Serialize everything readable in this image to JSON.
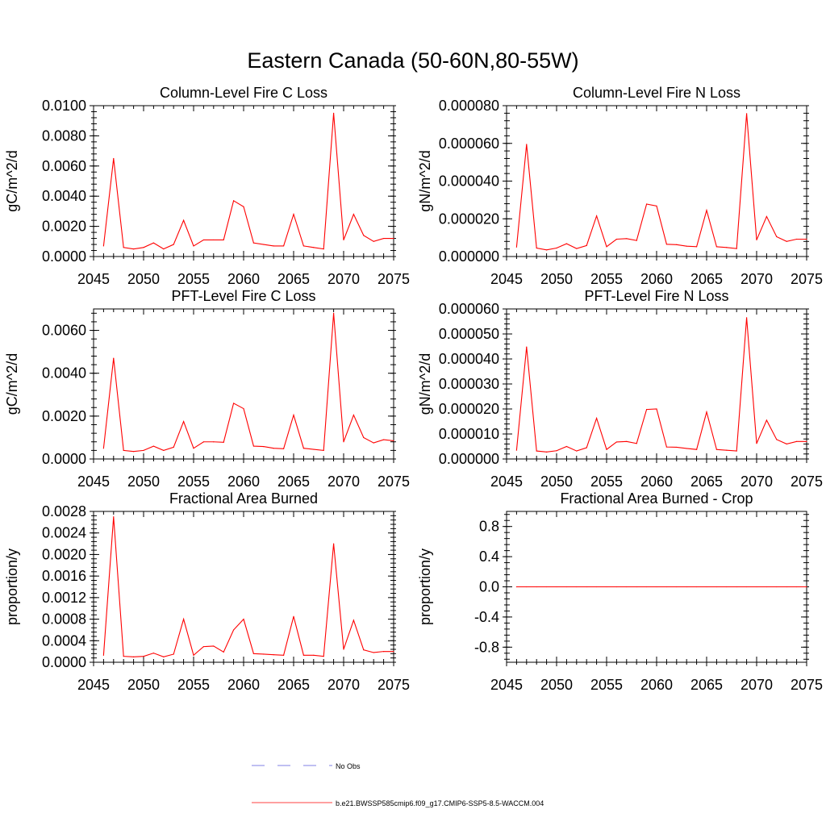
{
  "title": "Eastern Canada (50-60N,80-55W)",
  "legend": {
    "placement": "bottom-center",
    "entries": [
      {
        "label": "No Obs",
        "color": "#5a5adc",
        "dash": true
      },
      {
        "label": "b.e21.BWSSP585cmip6.f09_g17.CMIP6-SSP5-8.5-WACCM.004",
        "color": "#ff0000",
        "dash": false
      }
    ]
  },
  "colors": {
    "series": "#ff0000",
    "axis": "#000000"
  },
  "chart_data": [
    {
      "type": "line",
      "title": "Column-Level Fire C Loss",
      "ylabel": "gC/m^2/d",
      "xlim": [
        2045,
        2075
      ],
      "ylim": [
        0,
        0.01
      ],
      "xticks": [
        2045,
        2050,
        2055,
        2060,
        2065,
        2070,
        2075
      ],
      "xtick_labels": [
        "2045",
        "2050",
        "2055",
        "2060",
        "2065",
        "2070",
        "2075"
      ],
      "yticks": [
        0,
        0.002,
        0.004,
        0.006,
        0.008,
        0.01
      ],
      "ytick_labels": [
        "0.0000",
        "0.0020",
        "0.0040",
        "0.0060",
        "0.0080",
        "0.0100"
      ],
      "grid": false,
      "x": [
        2046,
        2047,
        2048,
        2049,
        2050,
        2051,
        2052,
        2053,
        2054,
        2055,
        2056,
        2057,
        2058,
        2059,
        2060,
        2061,
        2062,
        2063,
        2064,
        2065,
        2066,
        2067,
        2068,
        2069,
        2070,
        2071,
        2072,
        2073,
        2074,
        2075
      ],
      "series": [
        {
          "values": [
            0.0007,
            0.0065,
            0.0006,
            0.0005,
            0.0006,
            0.0009,
            0.0005,
            0.0008,
            0.0024,
            0.0007,
            0.0011,
            0.0011,
            0.0011,
            0.0037,
            0.0033,
            0.0009,
            0.0008,
            0.0007,
            0.0007,
            0.0028,
            0.0007,
            0.0006,
            0.0005,
            0.0095,
            0.0011,
            0.0028,
            0.0014,
            0.001,
            0.0012,
            0.0012
          ]
        }
      ]
    },
    {
      "type": "line",
      "title": "Column-Level Fire N Loss",
      "ylabel": "gN/m^2/d",
      "xlim": [
        2045,
        2075
      ],
      "ylim": [
        0,
        8e-05
      ],
      "xticks": [
        2045,
        2050,
        2055,
        2060,
        2065,
        2070,
        2075
      ],
      "xtick_labels": [
        "2045",
        "2050",
        "2055",
        "2060",
        "2065",
        "2070",
        "2075"
      ],
      "yticks": [
        0,
        2e-05,
        4e-05,
        6e-05,
        8e-05
      ],
      "ytick_labels": [
        "0.000000",
        "0.000020",
        "0.000040",
        "0.000060",
        "0.000080"
      ],
      "grid": false,
      "x": [
        2046,
        2047,
        2048,
        2049,
        2050,
        2051,
        2052,
        2053,
        2054,
        2055,
        2056,
        2057,
        2058,
        2059,
        2060,
        2061,
        2062,
        2063,
        2064,
        2065,
        2066,
        2067,
        2068,
        2069,
        2070,
        2071,
        2072,
        2073,
        2074,
        2075
      ],
      "series": [
        {
          "values": [
            5e-06,
            5.95e-05,
            4.5e-06,
            3.5e-06,
            4.5e-06,
            6.8e-06,
            4.2e-06,
            5.8e-06,
            2.15e-05,
            5.2e-06,
            9.2e-06,
            9.5e-06,
            8.5e-06,
            2.78e-05,
            2.68e-05,
            6.5e-06,
            6.3e-06,
            5.5e-06,
            5.2e-06,
            2.45e-05,
            5.2e-06,
            4.8e-06,
            4.2e-06,
            7.58e-05,
            8.8e-06,
            2.12e-05,
            1.05e-05,
            8e-06,
            9.2e-06,
            9.2e-06
          ]
        }
      ]
    },
    {
      "type": "line",
      "title": "PFT-Level Fire C Loss",
      "ylabel": "gC/m^2/d",
      "xlim": [
        2045,
        2075
      ],
      "ylim": [
        0,
        0.007
      ],
      "xticks": [
        2045,
        2050,
        2055,
        2060,
        2065,
        2070,
        2075
      ],
      "xtick_labels": [
        "2045",
        "2050",
        "2055",
        "2060",
        "2065",
        "2070",
        "2075"
      ],
      "yticks": [
        0,
        0.002,
        0.004,
        0.006
      ],
      "ytick_labels": [
        "0.0000",
        "0.0020",
        "0.0040",
        "0.0060"
      ],
      "grid": false,
      "x": [
        2046,
        2047,
        2048,
        2049,
        2050,
        2051,
        2052,
        2053,
        2054,
        2055,
        2056,
        2057,
        2058,
        2059,
        2060,
        2061,
        2062,
        2063,
        2064,
        2065,
        2066,
        2067,
        2068,
        2069,
        2070,
        2071,
        2072,
        2073,
        2074,
        2075
      ],
      "series": [
        {
          "values": [
            0.0005,
            0.0047,
            0.0004,
            0.00035,
            0.0004,
            0.0006,
            0.0004,
            0.00055,
            0.00175,
            0.0005,
            0.0008,
            0.0008,
            0.00078,
            0.0026,
            0.00235,
            0.0006,
            0.00058,
            0.0005,
            0.00048,
            0.00205,
            0.0005,
            0.00045,
            0.0004,
            0.0068,
            0.0008,
            0.00205,
            0.001,
            0.00075,
            0.0009,
            0.00085
          ]
        }
      ]
    },
    {
      "type": "line",
      "title": "PFT-Level Fire N Loss",
      "ylabel": "gN/m^2/d",
      "xlim": [
        2045,
        2075
      ],
      "ylim": [
        0,
        6e-05
      ],
      "xticks": [
        2045,
        2050,
        2055,
        2060,
        2065,
        2070,
        2075
      ],
      "xtick_labels": [
        "2045",
        "2050",
        "2055",
        "2060",
        "2065",
        "2070",
        "2075"
      ],
      "yticks": [
        0,
        1e-05,
        2e-05,
        3e-05,
        4e-05,
        5e-05,
        6e-05
      ],
      "ytick_labels": [
        "0.000000",
        "0.000010",
        "0.000020",
        "0.000030",
        "0.000040",
        "0.000050",
        "0.000060"
      ],
      "grid": false,
      "x": [
        2046,
        2047,
        2048,
        2049,
        2050,
        2051,
        2052,
        2053,
        2054,
        2055,
        2056,
        2057,
        2058,
        2059,
        2060,
        2061,
        2062,
        2063,
        2064,
        2065,
        2066,
        2067,
        2068,
        2069,
        2070,
        2071,
        2072,
        2073,
        2074,
        2075
      ],
      "series": [
        {
          "values": [
            3.5e-06,
            4.48e-05,
            3.2e-06,
            2.8e-06,
            3.3e-06,
            5e-06,
            3.2e-06,
            4.5e-06,
            1.63e-05,
            3.8e-06,
            6.8e-06,
            7e-06,
            6.2e-06,
            1.98e-05,
            2e-05,
            4.8e-06,
            4.7e-06,
            4.2e-06,
            3.8e-06,
            1.88e-05,
            3.8e-06,
            3.5e-06,
            3.2e-06,
            5.65e-05,
            6.2e-06,
            1.55e-05,
            7.8e-06,
            6e-06,
            7e-06,
            7e-06
          ]
        }
      ]
    },
    {
      "type": "line",
      "title": "Fractional Area Burned",
      "ylabel": "proportion/y",
      "xlim": [
        2045,
        2075
      ],
      "ylim": [
        0,
        0.0028
      ],
      "xticks": [
        2045,
        2050,
        2055,
        2060,
        2065,
        2070,
        2075
      ],
      "xtick_labels": [
        "2045",
        "2050",
        "2055",
        "2060",
        "2065",
        "2070",
        "2075"
      ],
      "yticks": [
        0,
        0.0004,
        0.0008,
        0.0012,
        0.0016,
        0.002,
        0.0024,
        0.0028
      ],
      "ytick_labels": [
        "0.0000",
        "0.0004",
        "0.0008",
        "0.0012",
        "0.0016",
        "0.0020",
        "0.0024",
        "0.0028"
      ],
      "grid": false,
      "x": [
        2046,
        2047,
        2048,
        2049,
        2050,
        2051,
        2052,
        2053,
        2054,
        2055,
        2056,
        2057,
        2058,
        2059,
        2060,
        2061,
        2062,
        2063,
        2064,
        2065,
        2066,
        2067,
        2068,
        2069,
        2070,
        2071,
        2072,
        2073,
        2074,
        2075
      ],
      "series": [
        {
          "values": [
            0.00013,
            0.0027,
            0.00011,
            0.0001,
            0.00011,
            0.00017,
            0.0001,
            0.00015,
            0.0008,
            0.00013,
            0.00029,
            0.0003,
            0.00019,
            0.0006,
            0.0008,
            0.00016,
            0.00015,
            0.00014,
            0.00013,
            0.00085,
            0.00013,
            0.00013,
            0.00011,
            0.0022,
            0.00024,
            0.00078,
            0.00023,
            0.00018,
            0.0002,
            0.0002
          ]
        }
      ]
    },
    {
      "type": "line",
      "title": "Fractional Area Burned - Crop",
      "ylabel": "proportion/y",
      "xlim": [
        2045,
        2075
      ],
      "ylim": [
        -1,
        1
      ],
      "xticks": [
        2045,
        2050,
        2055,
        2060,
        2065,
        2070,
        2075
      ],
      "xtick_labels": [
        "2045",
        "2050",
        "2055",
        "2060",
        "2065",
        "2070",
        "2075"
      ],
      "yticks": [
        -0.8,
        -0.4,
        0,
        0.4,
        0.8
      ],
      "ytick_labels": [
        "-0.8",
        "-0.4",
        "0.0",
        "0.4",
        "0.8"
      ],
      "grid": false,
      "x": [
        2046,
        2047,
        2048,
        2049,
        2050,
        2051,
        2052,
        2053,
        2054,
        2055,
        2056,
        2057,
        2058,
        2059,
        2060,
        2061,
        2062,
        2063,
        2064,
        2065,
        2066,
        2067,
        2068,
        2069,
        2070,
        2071,
        2072,
        2073,
        2074,
        2075
      ],
      "series": [
        {
          "values": [
            0,
            0,
            0,
            0,
            0,
            0,
            0,
            0,
            0,
            0,
            0,
            0,
            0,
            0,
            0,
            0,
            0,
            0,
            0,
            0,
            0,
            0,
            0,
            0,
            0,
            0,
            0,
            0,
            0,
            0
          ]
        }
      ]
    }
  ]
}
